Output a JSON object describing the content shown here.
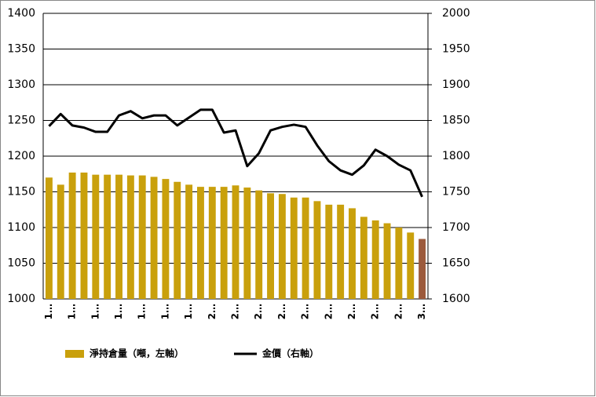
{
  "chart_data": {
    "type": "bar-line",
    "categories": [
      "1…",
      null,
      "1…",
      null,
      "1…",
      null,
      "1…",
      null,
      "1…",
      null,
      "1…",
      null,
      "1…",
      null,
      "2…",
      null,
      "2…",
      null,
      "2…",
      null,
      "2…",
      null,
      "2…",
      null,
      "2…",
      null,
      "2…",
      null,
      "2…",
      null,
      "2…",
      null,
      "3…"
    ],
    "series": [
      {
        "name": "淨持倉量（噸，左軸）",
        "type": "bar",
        "color": "#c9a00c",
        "colors": [
          "#c9a00c",
          "#c9a00c",
          "#c9a00c",
          "#c9a00c",
          "#c9a00c",
          "#c9a00c",
          "#c9a00c",
          "#c9a00c",
          "#c9a00c",
          "#c9a00c",
          "#c9a00c",
          "#c9a00c",
          "#c9a00c",
          "#c9a00c",
          "#c9a00c",
          "#c9a00c",
          "#c9a00c",
          "#c9a00c",
          "#c9a00c",
          "#c9a00c",
          "#c9a00c",
          "#c9a00c",
          "#c9a00c",
          "#c9a00c",
          "#c9a00c",
          "#c9a00c",
          "#c9a00c",
          "#c9a00c",
          "#c9a00c",
          "#c9a00c",
          "#c9a00c",
          "#c9a00c",
          "#9c5a3c"
        ],
        "values": [
          1170,
          1160,
          1177,
          1177,
          1174,
          1174,
          1174,
          1173,
          1173,
          1171,
          1168,
          1164,
          1160,
          1157,
          1157,
          1157,
          1159,
          1156,
          1152,
          1148,
          1147,
          1142,
          1142,
          1137,
          1132,
          1132,
          1127,
          1115,
          1110,
          1106,
          1100,
          1093,
          1084
        ]
      },
      {
        "name": "金價（右軸）",
        "type": "line",
        "axis": "y2",
        "color": "#000000",
        "values": [
          1842,
          1859,
          1843,
          1840,
          1834,
          1834,
          1857,
          1863,
          1853,
          1857,
          1857,
          1843,
          1854,
          1865,
          1865,
          1833,
          1836,
          1786,
          1804,
          1836,
          1841,
          1844,
          1841,
          1815,
          1793,
          1780,
          1774,
          1787,
          1809,
          1800,
          1788,
          1780,
          1743
        ]
      }
    ],
    "ylim": [
      1000,
      1400
    ],
    "yticks": [
      1000,
      1050,
      1100,
      1150,
      1200,
      1250,
      1300,
      1350,
      1400
    ],
    "y2lim": [
      1600,
      2000
    ],
    "y2ticks": [
      1600,
      1650,
      1700,
      1750,
      1800,
      1850,
      1900,
      1950,
      2000
    ],
    "grid": true,
    "legend": "bottom"
  }
}
